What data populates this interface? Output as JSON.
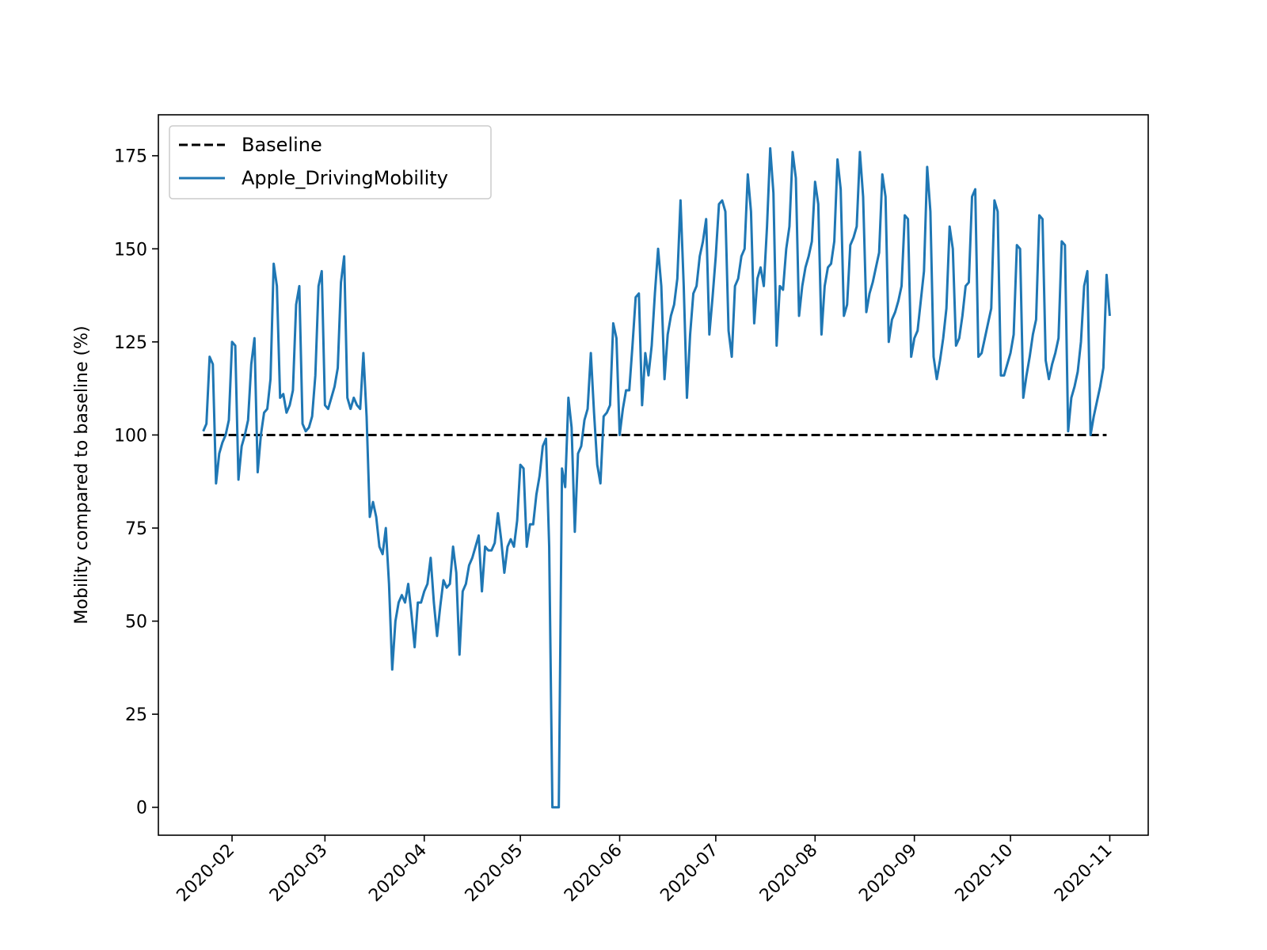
{
  "chart_data": {
    "type": "line",
    "title": "",
    "xlabel": "",
    "ylabel": "Mobility compared to baseline (%)",
    "xlim": [
      "2020-01-09",
      "2020-11-13"
    ],
    "ylim": [
      -7.5,
      186
    ],
    "x_ticks": [
      "2020-02-01",
      "2020-03-01",
      "2020-04-01",
      "2020-05-01",
      "2020-06-01",
      "2020-07-01",
      "2020-08-01",
      "2020-09-01",
      "2020-10-01",
      "2020-11-01"
    ],
    "x_tick_labels": [
      "2020-02",
      "2020-03",
      "2020-04",
      "2020-05",
      "2020-06",
      "2020-07",
      "2020-08",
      "2020-09",
      "2020-10",
      "2020-11"
    ],
    "y_ticks": [
      0,
      25,
      50,
      75,
      100,
      125,
      150,
      175
    ],
    "y_tick_labels": [
      "0",
      "25",
      "50",
      "75",
      "100",
      "125",
      "150",
      "175"
    ],
    "grid": false,
    "legend_position": "upper-left",
    "start_date": "2020-01-23",
    "series": [
      {
        "name": "Baseline",
        "style": "dashed",
        "color": "#000000",
        "x": [
          "2020-01-23",
          "2020-10-31"
        ],
        "values": [
          100,
          100
        ]
      },
      {
        "name": "Apple_DrivingMobility",
        "style": "solid",
        "color": "#1f77b4",
        "values": [
          101,
          103,
          121,
          119,
          87,
          95,
          98,
          100,
          104,
          125,
          124,
          88,
          97,
          100,
          104,
          119,
          126,
          90,
          100,
          106,
          107,
          115,
          146,
          140,
          110,
          111,
          106,
          108,
          112,
          135,
          140,
          103,
          101,
          102,
          105,
          116,
          140,
          144,
          108,
          107,
          110,
          113,
          118,
          141,
          148,
          110,
          107,
          110,
          108,
          107,
          122,
          105,
          78,
          82,
          78,
          70,
          68,
          75,
          60,
          37,
          50,
          55,
          57,
          55,
          60,
          52,
          43,
          55,
          55,
          58,
          60,
          67,
          55,
          46,
          54,
          61,
          59,
          60,
          70,
          63,
          41,
          58,
          60,
          65,
          67,
          70,
          73,
          58,
          70,
          69,
          69,
          71,
          79,
          72,
          63,
          70,
          72,
          70,
          77,
          92,
          91,
          70,
          76,
          76,
          84,
          89,
          97,
          99,
          70,
          0,
          0,
          0,
          91,
          86,
          110,
          102,
          74,
          95,
          97,
          104,
          107,
          122,
          106,
          92,
          87,
          105,
          106,
          108,
          130,
          126,
          100,
          107,
          112,
          112,
          124,
          137,
          138,
          108,
          122,
          116,
          124,
          138,
          150,
          140,
          115,
          127,
          132,
          135,
          142,
          163,
          140,
          110,
          127,
          138,
          140,
          148,
          152,
          158,
          127,
          137,
          148,
          162,
          163,
          160,
          128,
          121,
          140,
          142,
          148,
          150,
          170,
          160,
          130,
          142,
          145,
          140,
          156,
          177,
          165,
          124,
          140,
          139,
          150,
          156,
          176,
          169,
          132,
          140,
          145,
          148,
          152,
          168,
          162,
          127,
          140,
          145,
          146,
          152,
          174,
          166,
          132,
          135,
          151,
          153,
          156,
          176,
          164,
          133,
          138,
          141,
          145,
          149,
          170,
          164,
          125,
          131,
          133,
          136,
          140,
          159,
          158,
          121,
          126,
          128,
          136,
          144,
          172,
          160,
          121,
          115,
          120,
          126,
          134,
          156,
          150,
          124,
          126,
          132,
          140,
          141,
          164,
          166,
          121,
          122,
          126,
          130,
          134,
          163,
          160,
          116,
          116,
          119,
          122,
          127,
          151,
          150,
          110,
          116,
          121,
          127,
          131,
          159,
          158,
          120,
          115,
          119,
          122,
          126,
          152,
          151,
          101,
          110,
          113,
          117,
          125,
          140,
          144,
          100,
          105,
          109,
          113,
          118,
          143,
          132
        ]
      }
    ]
  }
}
